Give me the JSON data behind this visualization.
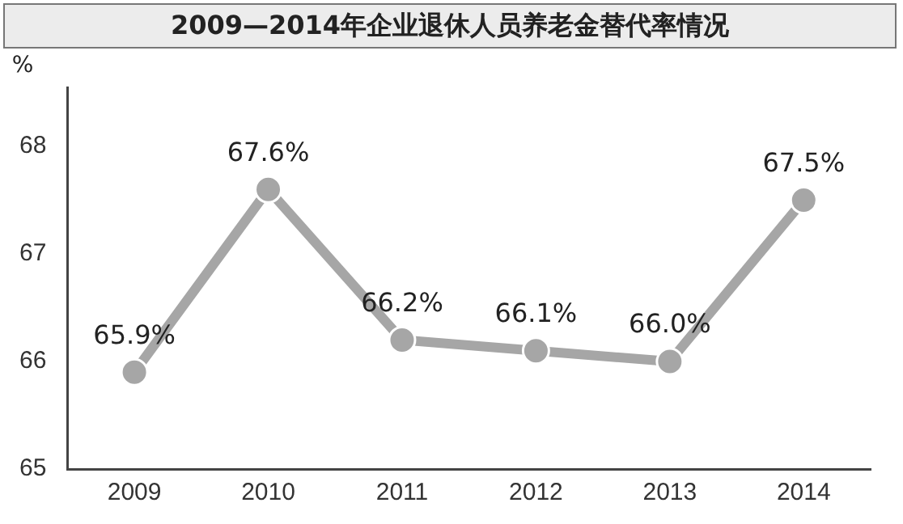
{
  "chart_data": {
    "type": "line",
    "title": "2009—2014年企业退休人员养老金替代率情况",
    "ylabel": "%",
    "categories": [
      "2009",
      "2010",
      "2011",
      "2012",
      "2013",
      "2014"
    ],
    "series": [
      {
        "color": "#a6a6a6",
        "values": [
          65.9,
          67.6,
          66.2,
          66.1,
          66.0,
          67.5
        ],
        "value_labels": [
          "65.9%",
          "67.6%",
          "66.2%",
          "66.1%",
          "66.0%",
          "67.5%"
        ]
      }
    ],
    "ylim": [
      65,
      68.55
    ],
    "yticks": [
      65,
      66,
      67,
      68
    ],
    "grid": false,
    "legend": false,
    "marker": "circle",
    "line_style": "solid"
  }
}
